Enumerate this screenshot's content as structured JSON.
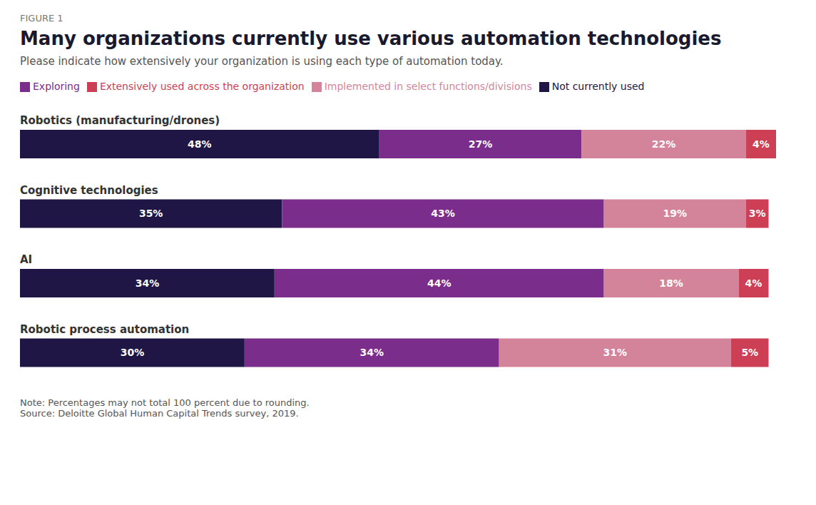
{
  "chart_data": {
    "type": "bar",
    "orientation": "horizontal",
    "stacked": true,
    "data_labels": true,
    "tick_labels": "y",
    "grid": false,
    "legend": "top",
    "title": "Many organizations currently use various automation technologies",
    "subtitle": "Please indicate how extensively your organization is using each type of automation today.",
    "annotations": [
      "FIGURE 1",
      "Note: Percentages may not total 100 percent due to rounding.\nSource: Deloitte Global Human Capital Trends survey, 2019."
    ],
    "categories": [
      "Robotics (manufacturing/drones)",
      "Cognitive technologies",
      "AI",
      "Robotic process automation"
    ],
    "xlim": [
      0,
      101
    ],
    "series": [
      {
        "name": "Not currently used",
        "color": "#1f1645",
        "values": [
          48,
          35,
          34,
          30
        ],
        "value_labels": [
          "48%",
          "35%",
          "34%",
          "30%"
        ]
      },
      {
        "name": "Exploring",
        "color": "#7b2d8b",
        "values": [
          27,
          43,
          44,
          34
        ],
        "value_labels": [
          "27%",
          "43%",
          "44%",
          "34%"
        ]
      },
      {
        "name": "Implemented in select functions/divisions",
        "color": "#d4849a",
        "values": [
          22,
          19,
          18,
          31
        ],
        "value_labels": [
          "22%",
          "19%",
          "18%",
          "31%"
        ]
      },
      {
        "name": "Extensively used across the organization",
        "color": "#cc3f55",
        "values": [
          4,
          3,
          4,
          5
        ],
        "value_labels": [
          "4%",
          "3%",
          "4%",
          "5%"
        ]
      }
    ]
  }
}
